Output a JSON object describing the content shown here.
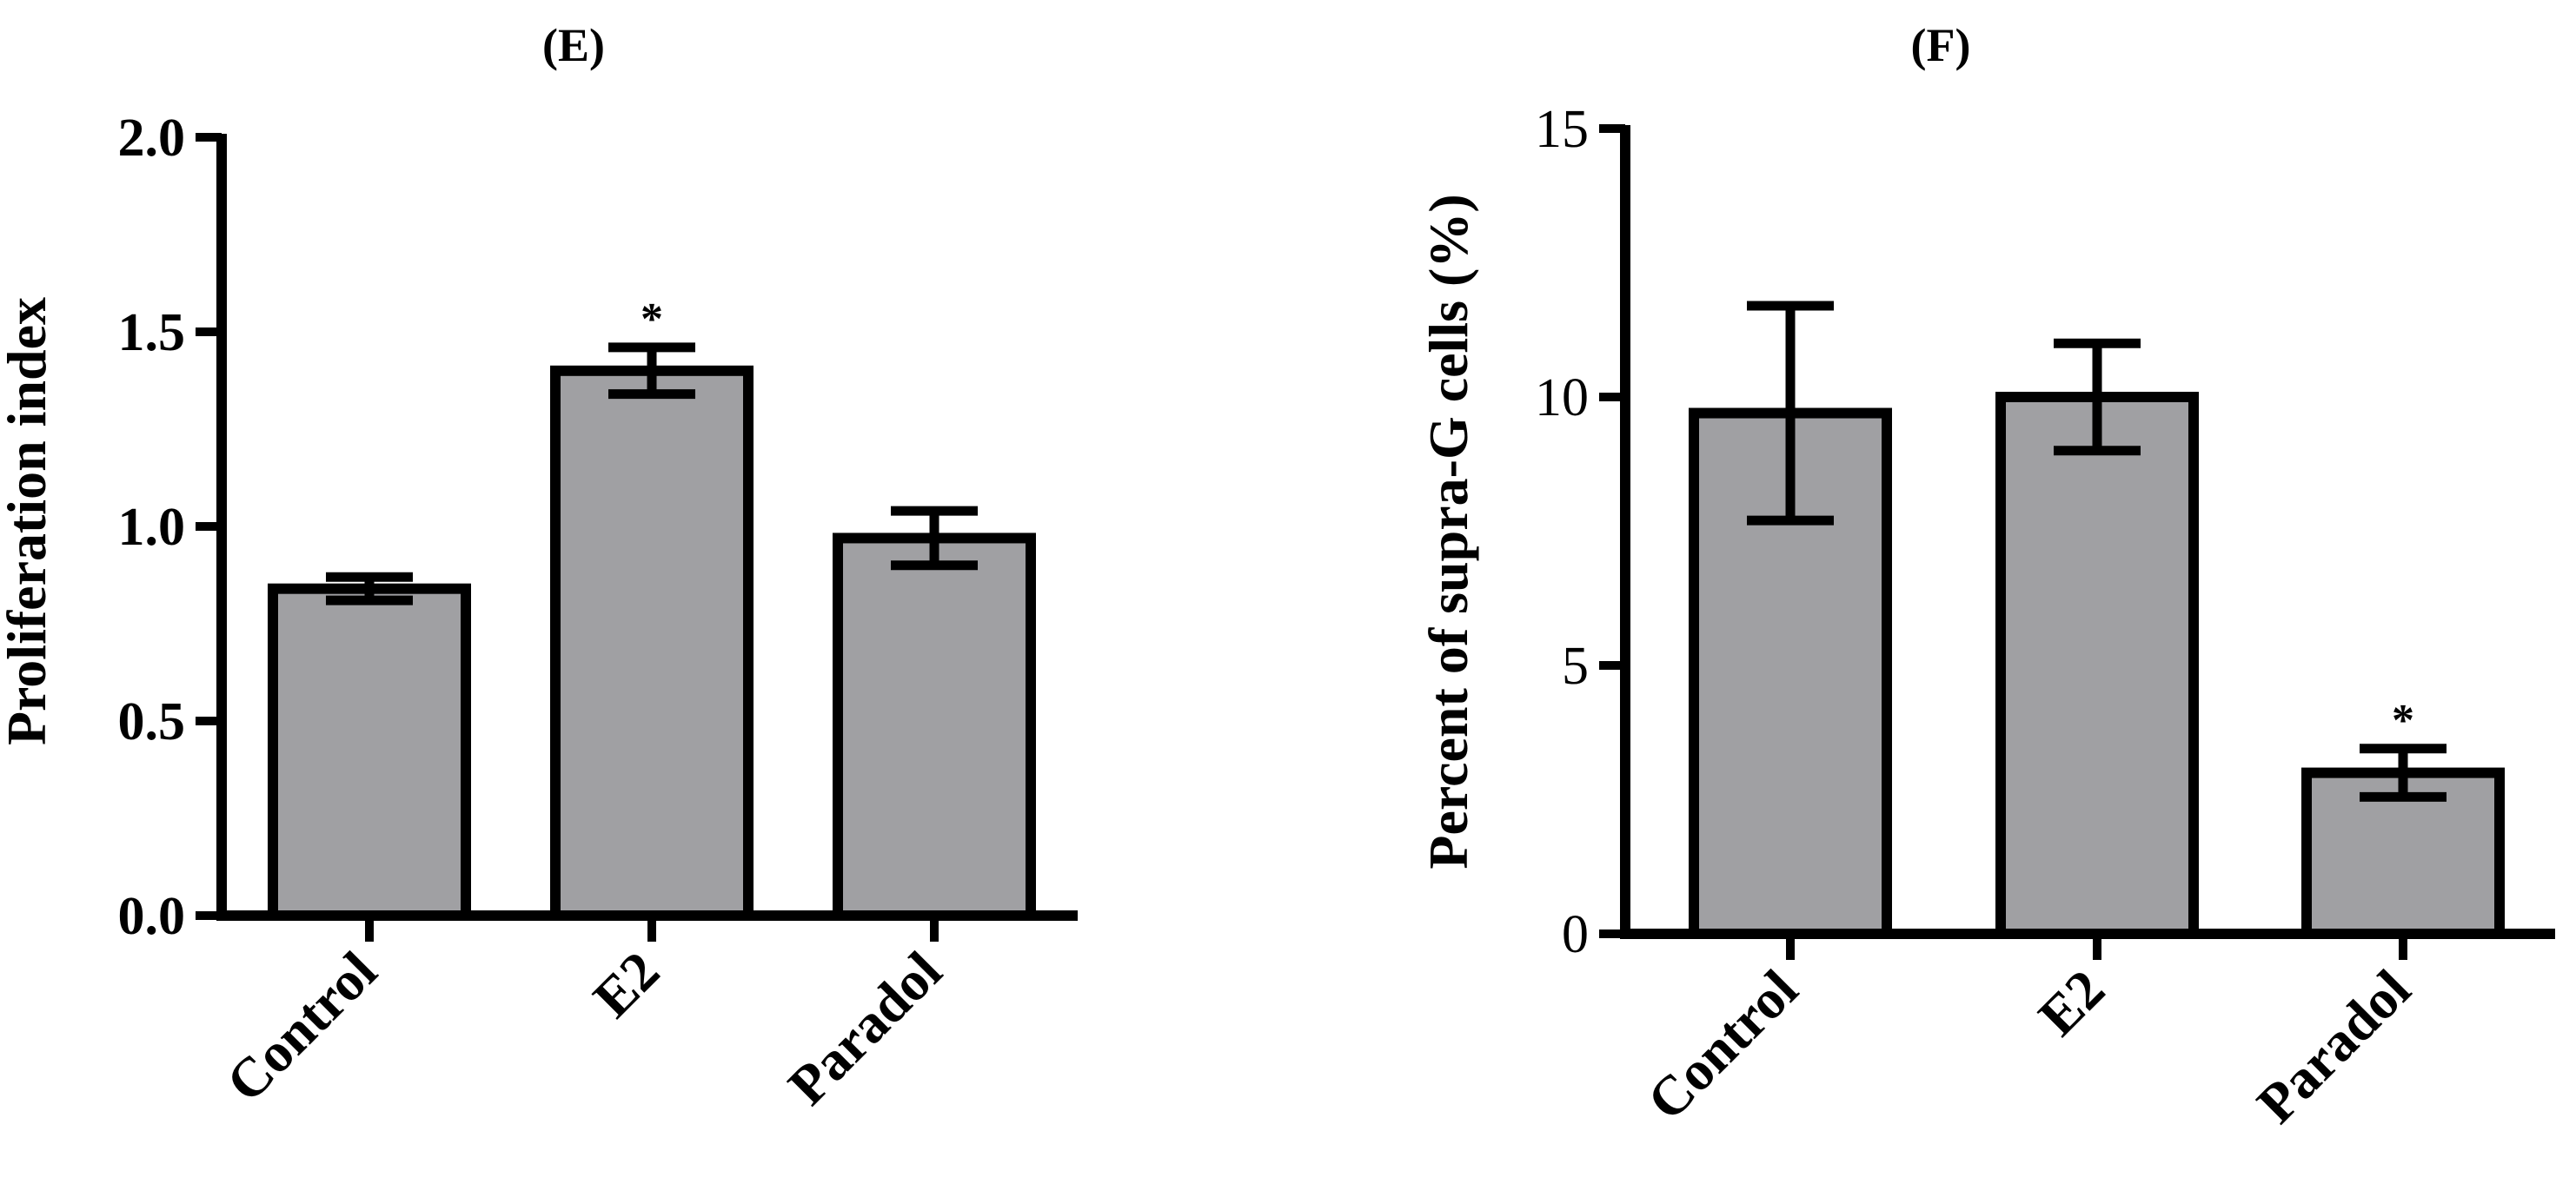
{
  "chart_data": [
    {
      "type": "bar",
      "title": "(E)",
      "xlabel": "",
      "ylabel": "Proliferation index",
      "categories": [
        "Control",
        "E2",
        "Paradol"
      ],
      "values": [
        0.84,
        1.4,
        0.97
      ],
      "errors": [
        0.03,
        0.06,
        0.07
      ],
      "annotations": [
        "",
        "*",
        ""
      ],
      "ylim": [
        0,
        2.0
      ],
      "yticks": [
        "0.0",
        "0.5",
        "1.0",
        "1.5",
        "2.0"
      ],
      "ytick_values": [
        0,
        0.5,
        1.0,
        1.5,
        2.0
      ],
      "bar_color": "#a0a0a3",
      "edge_color": "#000000",
      "grid": false,
      "legend": "none"
    },
    {
      "type": "bar",
      "title": "(F)",
      "xlabel": "",
      "ylabel": "Percent of supra-G cells (%)",
      "categories": [
        "Control",
        "E2",
        "Paradol"
      ],
      "values": [
        9.7,
        10.0,
        3.0
      ],
      "errors": [
        2.0,
        1.0,
        0.45
      ],
      "annotations": [
        "",
        "",
        "*"
      ],
      "ylim": [
        0,
        15
      ],
      "yticks": [
        "0",
        "5",
        "10",
        "15"
      ],
      "ytick_values": [
        0,
        5,
        10,
        15
      ],
      "bar_color": "#a0a0a3",
      "edge_color": "#000000",
      "grid": false,
      "legend": "none"
    }
  ]
}
